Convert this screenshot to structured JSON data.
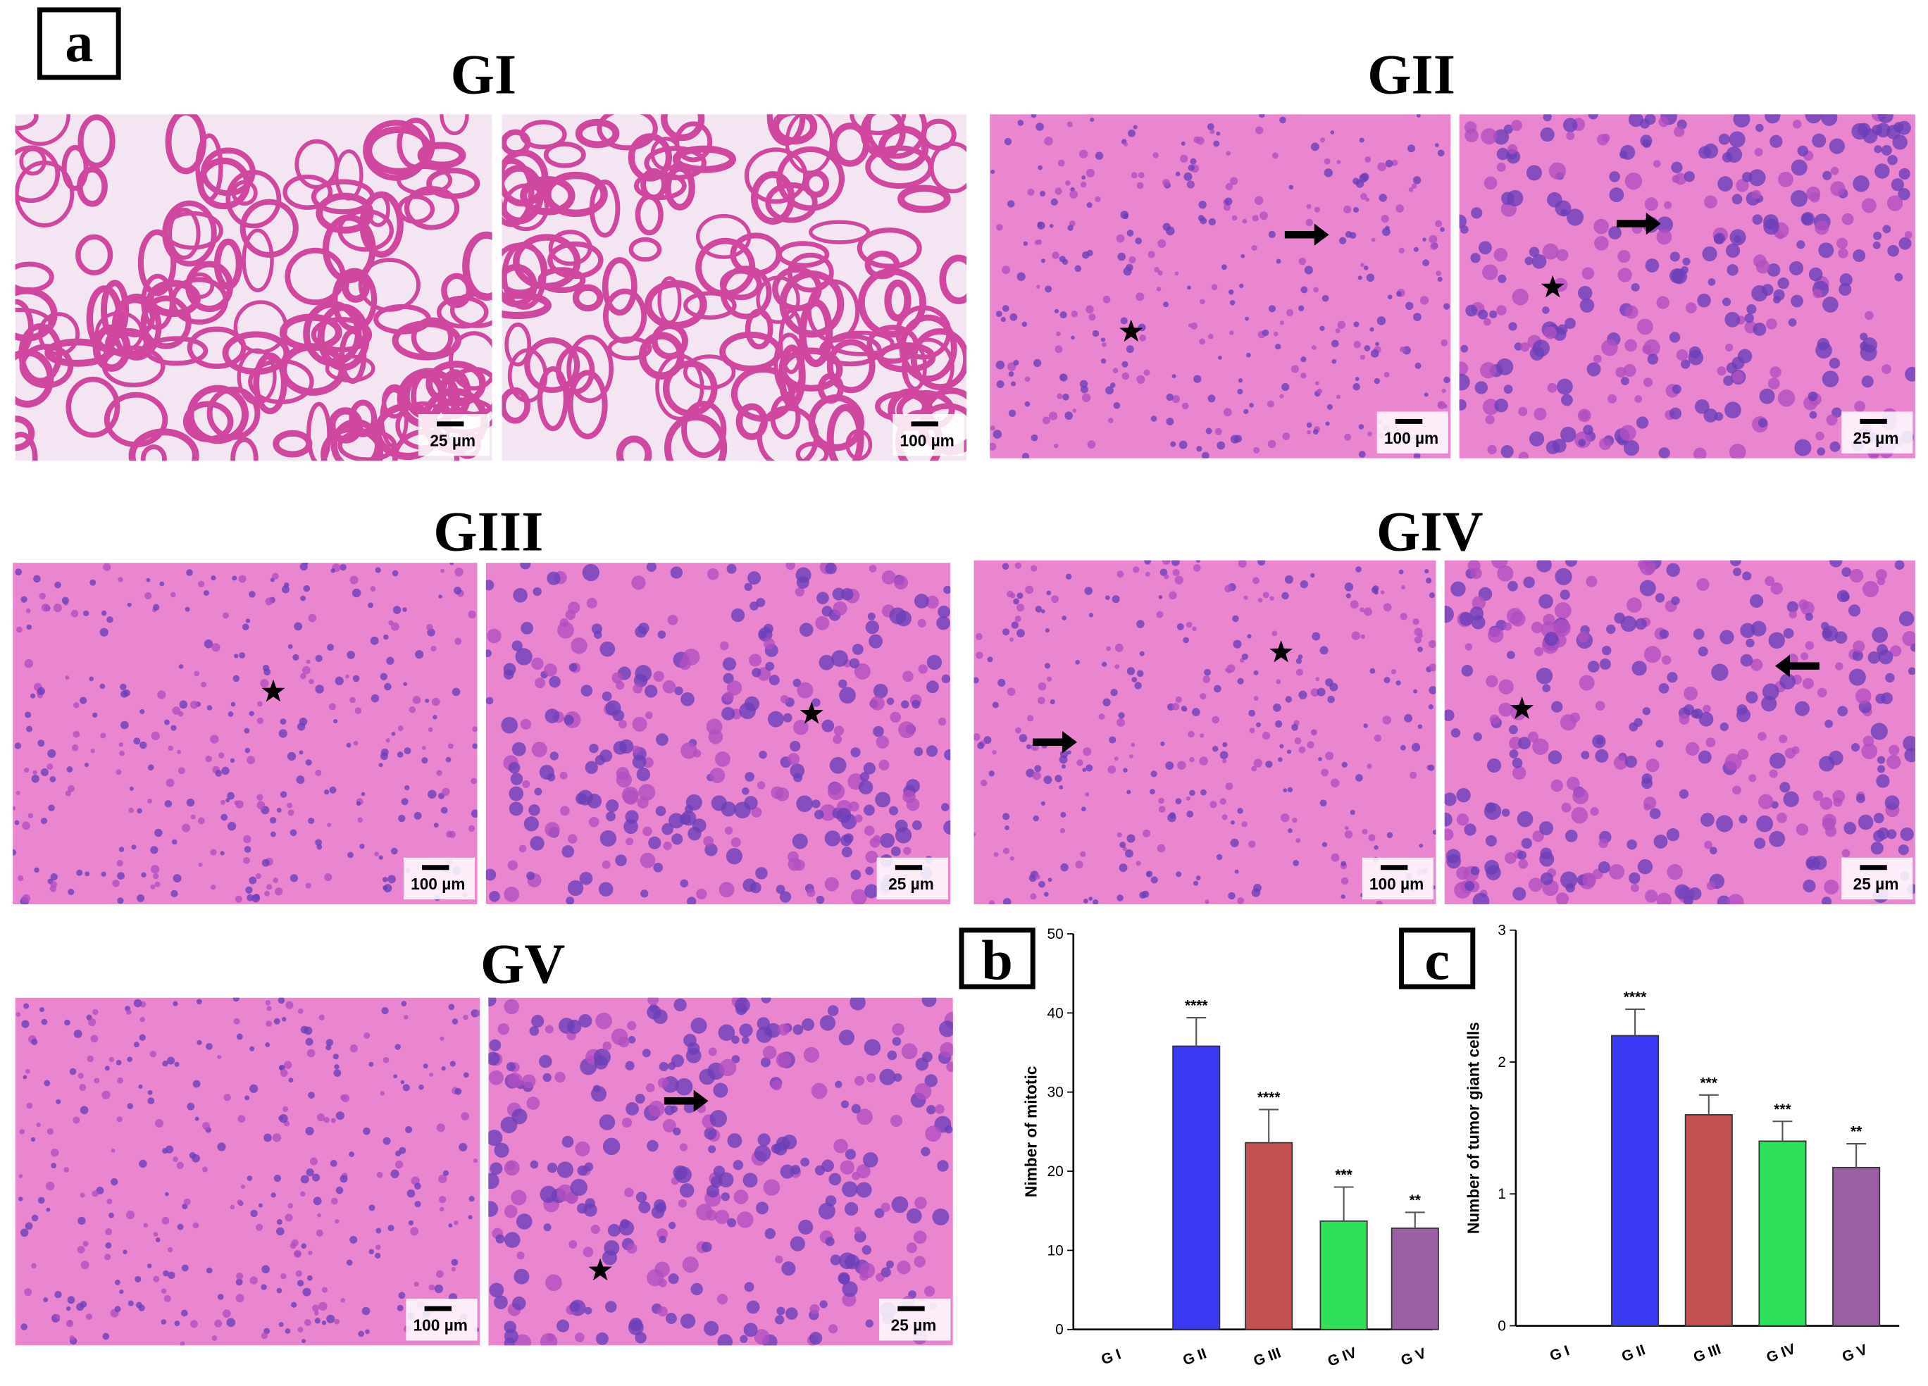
{
  "figure_label": "a",
  "panels": [
    {
      "title": "GI",
      "scale_bars": [
        "25 µm",
        "100 µm"
      ]
    },
    {
      "title": "GII",
      "scale_bars": [
        "100 µm",
        "25 µm"
      ]
    },
    {
      "title": "GIII",
      "scale_bars": [
        "100 µm",
        "25 µm"
      ]
    },
    {
      "title": "GIV",
      "scale_bars": [
        "100 µm",
        "25 µm"
      ]
    },
    {
      "title": "GV",
      "scale_bars": [
        "100 µm",
        "25 µm"
      ]
    }
  ],
  "chart_data": [
    {
      "type": "bar",
      "panel_label": "b",
      "ylabel": "Nimber of mitotic",
      "categories": [
        "G I",
        "G II",
        "G III",
        "G IV",
        "G V"
      ],
      "values": [
        0,
        35.8,
        23.6,
        13.7,
        12.8
      ],
      "errors": [
        null,
        3.6,
        4.2,
        4.3,
        2.0
      ],
      "annotations": [
        null,
        "****",
        "****",
        "***",
        "**"
      ],
      "colors": [
        "#3a3af2",
        "#3a3af2",
        "#c2504e",
        "#2fe05a",
        "#9b5fa3"
      ],
      "ylim": [
        0,
        50
      ],
      "yticks": [
        0,
        10,
        20,
        30,
        40,
        50
      ]
    },
    {
      "type": "bar",
      "panel_label": "c",
      "ylabel": "Number of tumor giant cells",
      "categories": [
        "G I",
        "G II",
        "G III",
        "G IV",
        "G V"
      ],
      "values": [
        0,
        2.2,
        1.6,
        1.4,
        1.2
      ],
      "errors": [
        null,
        0.2,
        0.15,
        0.15,
        0.18
      ],
      "annotations": [
        null,
        "****",
        "***",
        "***",
        "**"
      ],
      "colors": [
        "#3a3af2",
        "#3a3af2",
        "#c2504e",
        "#2fe05a",
        "#9b5fa3"
      ],
      "ylim": [
        0,
        3
      ],
      "yticks": [
        0,
        1,
        2,
        3
      ]
    }
  ]
}
